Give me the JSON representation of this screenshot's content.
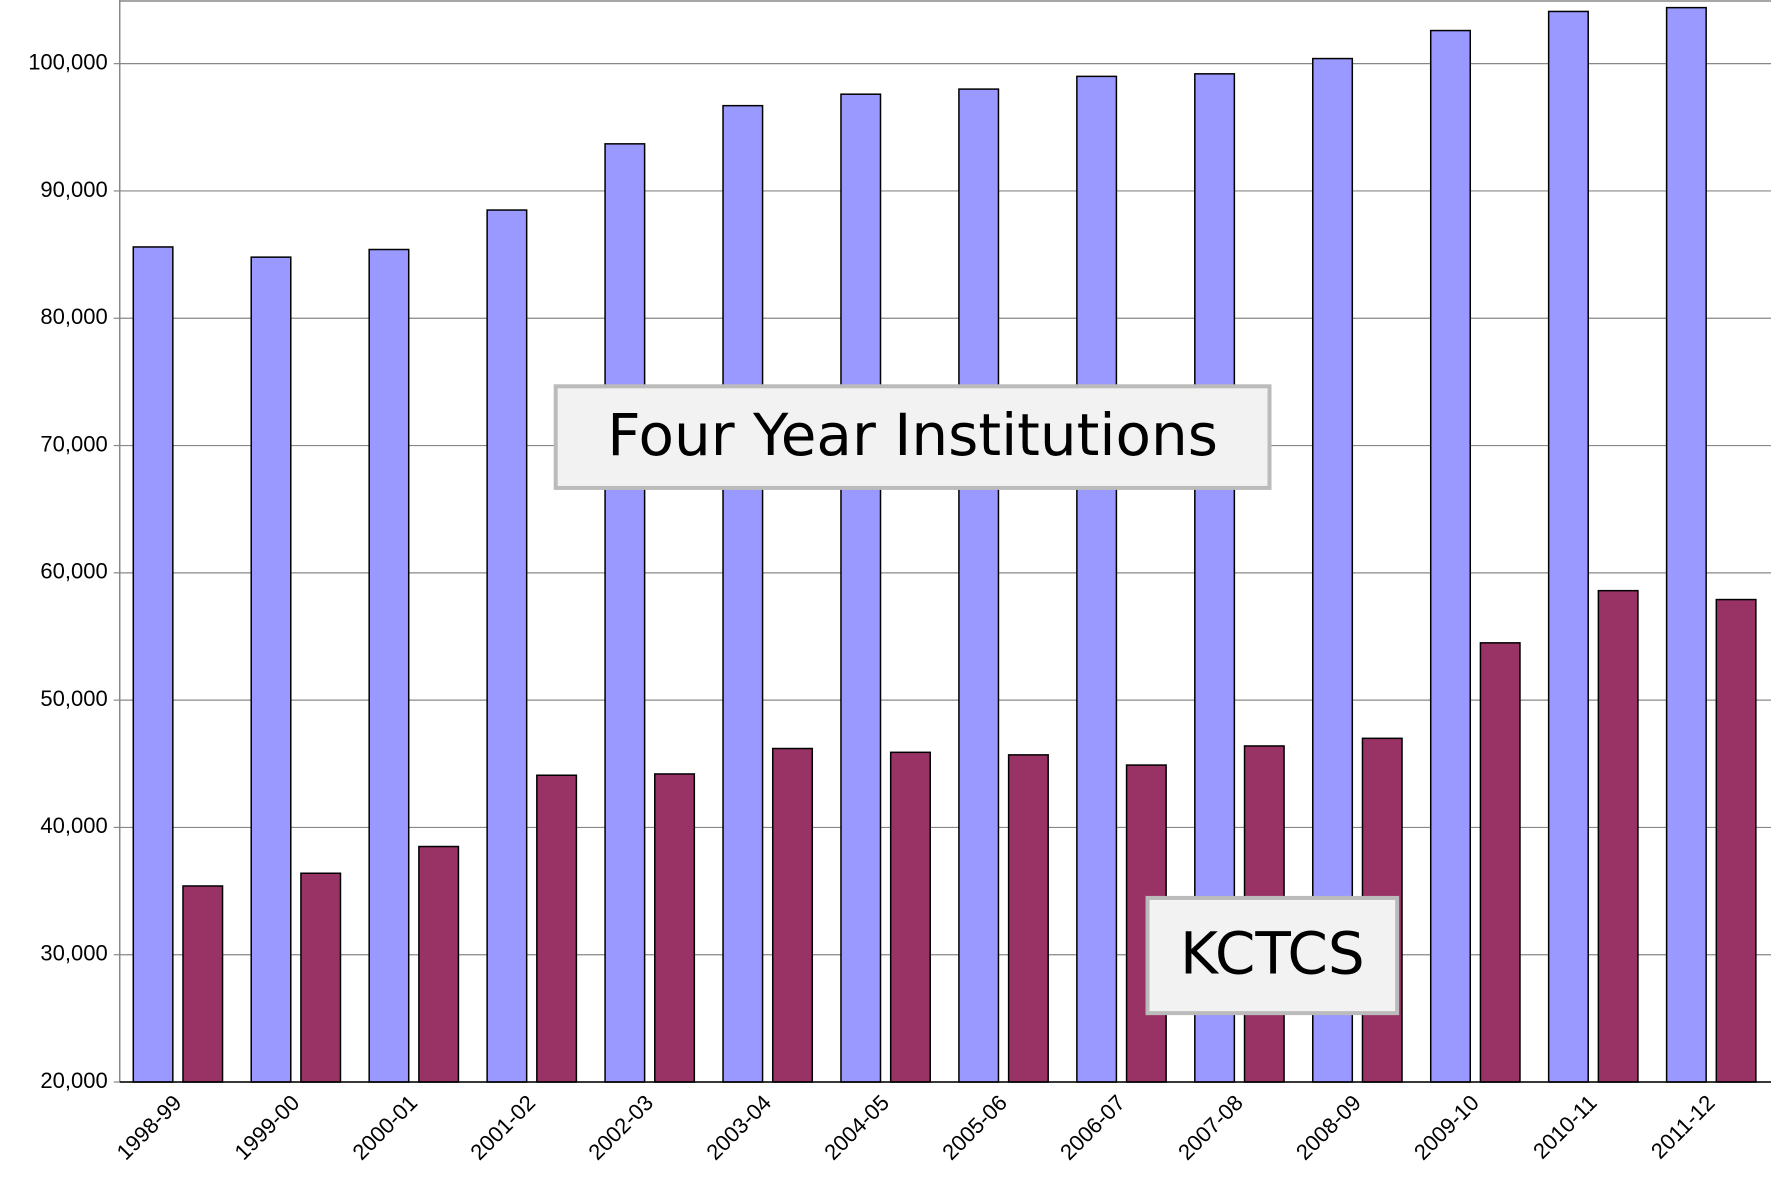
{
  "chart_data": {
    "type": "bar",
    "categories": [
      "1998-99",
      "1999-00",
      "2000-01",
      "2001-02",
      "2002-03",
      "2003-04",
      "2004-05",
      "2005-06",
      "2006-07",
      "2007-08",
      "2008-09",
      "2009-10",
      "2010-11",
      "2011-12"
    ],
    "series": [
      {
        "name": "Four Year Institutions",
        "color": "#9999ff",
        "values": [
          85600,
          84800,
          85400,
          88500,
          93700,
          96700,
          97600,
          98000,
          99000,
          99200,
          100400,
          102600,
          104100,
          104400
        ]
      },
      {
        "name": "KCTCS",
        "color": "#993366",
        "values": [
          35400,
          36400,
          38500,
          44100,
          44200,
          46200,
          45900,
          45700,
          44900,
          46400,
          47000,
          54500,
          58600,
          57900
        ]
      }
    ],
    "ylim": [
      20000,
      105000
    ],
    "yticks": [
      {
        "value": 20000,
        "label": "20,000"
      },
      {
        "value": 30000,
        "label": "30,000"
      },
      {
        "value": 40000,
        "label": "40,000"
      },
      {
        "value": 50000,
        "label": "50,000"
      },
      {
        "value": 60000,
        "label": "60,000"
      },
      {
        "value": 70000,
        "label": "70,000"
      },
      {
        "value": 80000,
        "label": "80,000"
      },
      {
        "value": 90000,
        "label": "90,000"
      },
      {
        "value": 100000,
        "label": "100,000"
      }
    ],
    "grid": true
  }
}
